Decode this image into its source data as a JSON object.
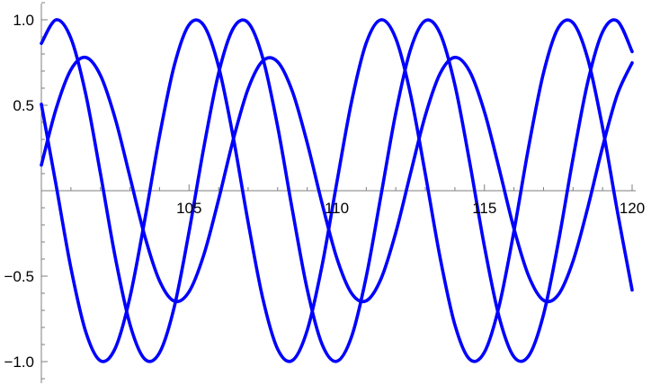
{
  "chart_data": {
    "type": "line",
    "title": "",
    "xlabel": "",
    "ylabel": "",
    "xlim": [
      100,
      120
    ],
    "ylim": [
      -1.0,
      1.0
    ],
    "grid": false,
    "line_color": "#0000ff",
    "x_ticks": [
      105,
      110,
      115,
      120
    ],
    "x_tick_labels": [
      "105",
      "110",
      "115",
      "120"
    ],
    "y_ticks": [
      -1.0,
      -0.5,
      0.5,
      1.0
    ],
    "y_tick_labels": [
      "−1.0",
      "−0.5",
      "0.5",
      "1.0"
    ],
    "x": [
      100,
      100.5,
      101,
      101.5,
      102,
      102.5,
      103,
      103.5,
      104,
      104.5,
      105,
      105.5,
      106,
      106.5,
      107,
      107.5,
      108,
      108.5,
      109,
      109.5,
      110,
      110.5,
      111,
      111.5,
      112,
      112.5,
      113,
      113.5,
      114,
      114.5,
      115,
      115.5,
      116,
      116.5,
      117,
      117.5,
      118,
      118.5,
      119,
      119.5,
      120
    ],
    "series": [
      {
        "values": [
          0.862,
          1.0,
          0.892,
          0.567,
          0.101,
          -0.388,
          -0.782,
          -0.985,
          -0.948,
          -0.68,
          -0.24,
          0.253,
          0.687,
          0.951,
          0.983,
          0.774,
          0.375,
          -0.115,
          -0.577,
          -0.897,
          -0.998,
          -0.855,
          -0.502,
          -0.026,
          0.456,
          0.827,
          0.995,
          0.92,
          0.619,
          0.167,
          -0.326,
          -0.74,
          -0.972,
          -0.966,
          -0.725,
          -0.304,
          0.19,
          0.637,
          0.929,
          0.993,
          0.814
        ]
      },
      {
        "values": [
          0.506,
          0.031,
          -0.452,
          -0.824,
          -0.995,
          -0.922,
          -0.623,
          -0.171,
          0.32,
          0.733,
          0.971,
          0.967,
          0.727,
          0.309,
          -0.185,
          -0.633,
          -0.927,
          -0.993,
          -0.817,
          -0.441,
          0.045,
          0.519,
          0.865,
          1.0,
          0.89,
          0.562,
          0.097,
          -0.392,
          -0.785,
          -0.986,
          -0.945,
          -0.673,
          -0.236,
          0.259,
          0.689,
          0.953,
          0.982,
          0.771,
          0.37,
          -0.12,
          -0.581
        ]
      },
      {
        "values": [
          0.15,
          0.48,
          0.708,
          0.78,
          0.675,
          0.422,
          0.08,
          -0.265,
          -0.527,
          -0.646,
          -0.591,
          -0.375,
          -0.052,
          0.301,
          0.596,
          0.76,
          0.754,
          0.58,
          0.28,
          -0.072,
          -0.393,
          -0.6,
          -0.644,
          -0.515,
          -0.244,
          0.103,
          0.441,
          0.686,
          0.78,
          0.698,
          0.462,
          0.128,
          -0.222,
          -0.5,
          -0.641,
          -0.609,
          -0.412,
          -0.098,
          0.256,
          0.563,
          0.748
        ]
      }
    ]
  }
}
